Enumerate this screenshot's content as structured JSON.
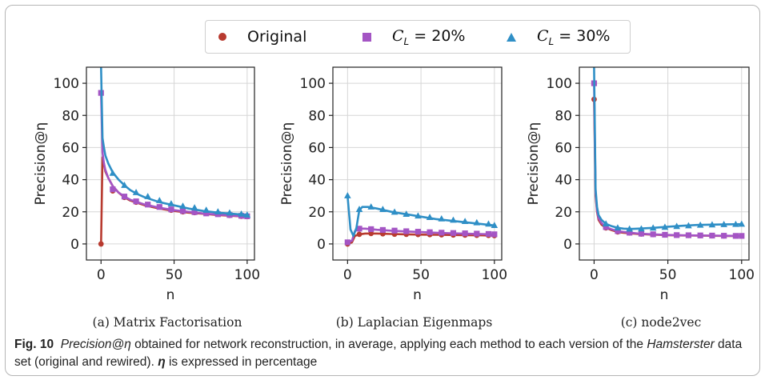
{
  "legend": {
    "items": [
      {
        "label": "Original",
        "color": "#b83a2f",
        "marker": "circle"
      },
      {
        "label": "C_L = 20%",
        "sym": "C",
        "sub": "L",
        "rest": " = 20%",
        "color": "#a455c4",
        "marker": "square"
      },
      {
        "label": "C_L = 30%",
        "sym": "C",
        "sub": "L",
        "rest": " = 30%",
        "color": "#2f8fc6",
        "marker": "triangle"
      }
    ]
  },
  "caption": {
    "fig_label": "Fig. 10",
    "metric": "Precision@η",
    "text1": " obtained for network reconstruction, in average, applying each method to each version of the ",
    "dataset": "Hamsterster",
    "text2": " data set (original and rewired). ",
    "eta": "η",
    "text3": " is expressed in percentage"
  },
  "chart_data": [
    {
      "type": "line",
      "subplot_title": "(a) Matrix Factorisation",
      "xlabel": "n",
      "ylabel": "Precision@η",
      "xlim": [
        -10,
        105
      ],
      "ylim": [
        -10,
        110
      ],
      "xticks": [
        0,
        50,
        100
      ],
      "yticks": [
        0,
        20,
        40,
        60,
        80,
        100
      ],
      "grid": true,
      "series": [
        {
          "name": "Original",
          "color": "#b83a2f",
          "marker": "circle",
          "x": [
            0,
            1,
            2,
            3,
            5,
            8,
            12,
            16,
            20,
            25,
            30,
            40,
            50,
            60,
            70,
            80,
            90,
            100
          ],
          "y": [
            0,
            54,
            50,
            45,
            41,
            36,
            32,
            29,
            27,
            25.5,
            24,
            22,
            20.5,
            19.5,
            18.8,
            18,
            17.5,
            17
          ],
          "markers_x": [
            0,
            8,
            16,
            24,
            32,
            40,
            48,
            56,
            64,
            72,
            80,
            88,
            96,
            100
          ],
          "markers_y": [
            0,
            33,
            29,
            26,
            24.5,
            23,
            21,
            20,
            19.5,
            19,
            18.5,
            17.8,
            17.2,
            17
          ]
        },
        {
          "name": "C_L = 20%",
          "color": "#a455c4",
          "marker": "square",
          "x": [
            0,
            1,
            2,
            3,
            5,
            8,
            12,
            16,
            20,
            25,
            30,
            40,
            50,
            60,
            70,
            80,
            90,
            100
          ],
          "y": [
            94,
            57,
            50,
            46,
            41,
            36,
            32,
            29.5,
            27.5,
            26,
            24.5,
            22.5,
            21,
            20,
            19,
            18.3,
            17.7,
            17
          ],
          "markers_x": [
            0,
            8,
            16,
            24,
            32,
            40,
            48,
            56,
            64,
            72,
            80,
            88,
            96,
            100
          ],
          "markers_y": [
            94,
            34,
            29.5,
            26.5,
            24.5,
            23,
            21.5,
            20.5,
            19.8,
            19,
            18.5,
            18,
            17.5,
            17.2
          ]
        },
        {
          "name": "C_L = 30%",
          "color": "#2f8fc6",
          "marker": "triangle",
          "x": [
            0,
            1,
            2,
            3,
            5,
            8,
            12,
            16,
            20,
            25,
            30,
            40,
            50,
            60,
            70,
            80,
            90,
            100
          ],
          "y": [
            110,
            66,
            60,
            55,
            50,
            44.5,
            40,
            36.5,
            33.5,
            31,
            29,
            26,
            24,
            22,
            20.5,
            19.5,
            18.8,
            18
          ],
          "markers_x": [
            8,
            16,
            24,
            32,
            40,
            48,
            56,
            64,
            72,
            80,
            88,
            96,
            100
          ],
          "markers_y": [
            44,
            36.5,
            32,
            29.5,
            27,
            25,
            23.5,
            22.5,
            21,
            20,
            19.3,
            18.6,
            18
          ]
        }
      ]
    },
    {
      "type": "line",
      "subplot_title": "(b) Laplacian Eigenmaps",
      "xlabel": "n",
      "ylabel": "Precision@η",
      "xlim": [
        -10,
        105
      ],
      "ylim": [
        -10,
        110
      ],
      "xticks": [
        0,
        50,
        100
      ],
      "yticks": [
        0,
        20,
        40,
        60,
        80,
        100
      ],
      "grid": true,
      "series": [
        {
          "name": "Original",
          "color": "#b83a2f",
          "marker": "circle",
          "x": [
            0,
            3,
            5,
            8,
            12,
            20,
            30,
            40,
            50,
            60,
            70,
            80,
            90,
            100
          ],
          "y": [
            0,
            1,
            5,
            6,
            6.5,
            6.5,
            6.2,
            6,
            5.8,
            5.7,
            5.6,
            5.5,
            5.4,
            5.2
          ],
          "markers_x": [
            0,
            8,
            16,
            24,
            32,
            40,
            48,
            56,
            64,
            72,
            80,
            88,
            96,
            100
          ],
          "markers_y": [
            0,
            6,
            6.5,
            6.3,
            6.1,
            6,
            5.9,
            5.8,
            5.7,
            5.6,
            5.5,
            5.4,
            5.3,
            5.2
          ]
        },
        {
          "name": "C_L = 20%",
          "color": "#a455c4",
          "marker": "square",
          "x": [
            0,
            3,
            5,
            8,
            12,
            20,
            30,
            40,
            50,
            60,
            70,
            80,
            90,
            100
          ],
          "y": [
            1,
            2,
            8,
            9.5,
            9.5,
            8.8,
            8.2,
            7.8,
            7.4,
            7,
            6.7,
            6.4,
            6.2,
            6
          ],
          "markers_x": [
            0,
            8,
            16,
            24,
            32,
            40,
            48,
            56,
            64,
            72,
            80,
            88,
            96,
            100
          ],
          "markers_y": [
            1,
            9.5,
            9.2,
            8.7,
            8.3,
            7.9,
            7.6,
            7.3,
            7,
            6.8,
            6.6,
            6.4,
            6.2,
            6
          ]
        },
        {
          "name": "C_L = 30%",
          "color": "#2f8fc6",
          "marker": "triangle",
          "x": [
            0,
            2,
            4,
            6,
            8,
            10,
            14,
            20,
            30,
            40,
            50,
            60,
            70,
            80,
            90,
            100
          ],
          "y": [
            30,
            9,
            5,
            10,
            21,
            23,
            23,
            22,
            20,
            18.5,
            17,
            15.5,
            14.5,
            13.5,
            12.5,
            11.5
          ],
          "markers_x": [
            0,
            8,
            16,
            24,
            32,
            40,
            48,
            56,
            64,
            72,
            80,
            88,
            96,
            100
          ],
          "markers_y": [
            30,
            21.5,
            23,
            21.5,
            19.8,
            18.5,
            17.4,
            16.5,
            15.6,
            14.8,
            14,
            13.2,
            12.4,
            11.5
          ]
        }
      ]
    },
    {
      "type": "line",
      "subplot_title": "(c) node2vec",
      "xlabel": "n",
      "ylabel": "Precision@η",
      "xlim": [
        -10,
        105
      ],
      "ylim": [
        -10,
        110
      ],
      "xticks": [
        0,
        50,
        100
      ],
      "yticks": [
        0,
        20,
        40,
        60,
        80,
        100
      ],
      "grid": true,
      "series": [
        {
          "name": "Original",
          "color": "#b83a2f",
          "marker": "circle",
          "x": [
            0,
            1,
            2,
            3,
            5,
            8,
            12,
            16,
            20,
            30,
            40,
            50,
            60,
            70,
            80,
            90,
            100
          ],
          "y": [
            90,
            30,
            20,
            15,
            12,
            10,
            8.5,
            7.5,
            7,
            6.2,
            5.8,
            5.5,
            5.3,
            5.2,
            5.1,
            5,
            5
          ],
          "markers_x": [
            0,
            8,
            16,
            24,
            32,
            40,
            48,
            56,
            64,
            72,
            80,
            88,
            96,
            100
          ],
          "markers_y": [
            90,
            10,
            7.5,
            6.8,
            6.2,
            5.8,
            5.6,
            5.4,
            5.3,
            5.2,
            5.1,
            5,
            5,
            5
          ]
        },
        {
          "name": "C_L = 20%",
          "color": "#a455c4",
          "marker": "square",
          "x": [
            0,
            1,
            2,
            3,
            5,
            8,
            12,
            16,
            20,
            30,
            40,
            50,
            60,
            70,
            80,
            90,
            100
          ],
          "y": [
            100,
            32,
            21,
            16,
            13,
            10.5,
            9,
            8,
            7.5,
            6.5,
            6,
            5.6,
            5.4,
            5.3,
            5.2,
            5.1,
            5
          ],
          "markers_x": [
            0,
            8,
            16,
            24,
            32,
            40,
            48,
            56,
            64,
            72,
            80,
            88,
            96,
            100
          ],
          "markers_y": [
            100,
            10.5,
            8,
            7,
            6.4,
            6,
            5.7,
            5.5,
            5.4,
            5.3,
            5.2,
            5.1,
            5,
            5
          ]
        },
        {
          "name": "C_L = 30%",
          "color": "#2f8fc6",
          "marker": "triangle",
          "x": [
            0,
            1,
            2,
            3,
            5,
            8,
            12,
            16,
            20,
            25,
            30,
            40,
            50,
            60,
            70,
            80,
            90,
            100
          ],
          "y": [
            110,
            34,
            23,
            18,
            15,
            12.5,
            11,
            10,
            9.5,
            9.3,
            9.5,
            10,
            10.7,
            11.3,
            11.8,
            12,
            12.2,
            12.3
          ],
          "markers_x": [
            8,
            16,
            24,
            32,
            40,
            48,
            56,
            64,
            72,
            80,
            88,
            96,
            100
          ],
          "markers_y": [
            12.5,
            10,
            9.3,
            9.4,
            9.9,
            10.4,
            10.9,
            11.3,
            11.7,
            11.9,
            12.1,
            12.2,
            12.3
          ]
        }
      ]
    }
  ]
}
